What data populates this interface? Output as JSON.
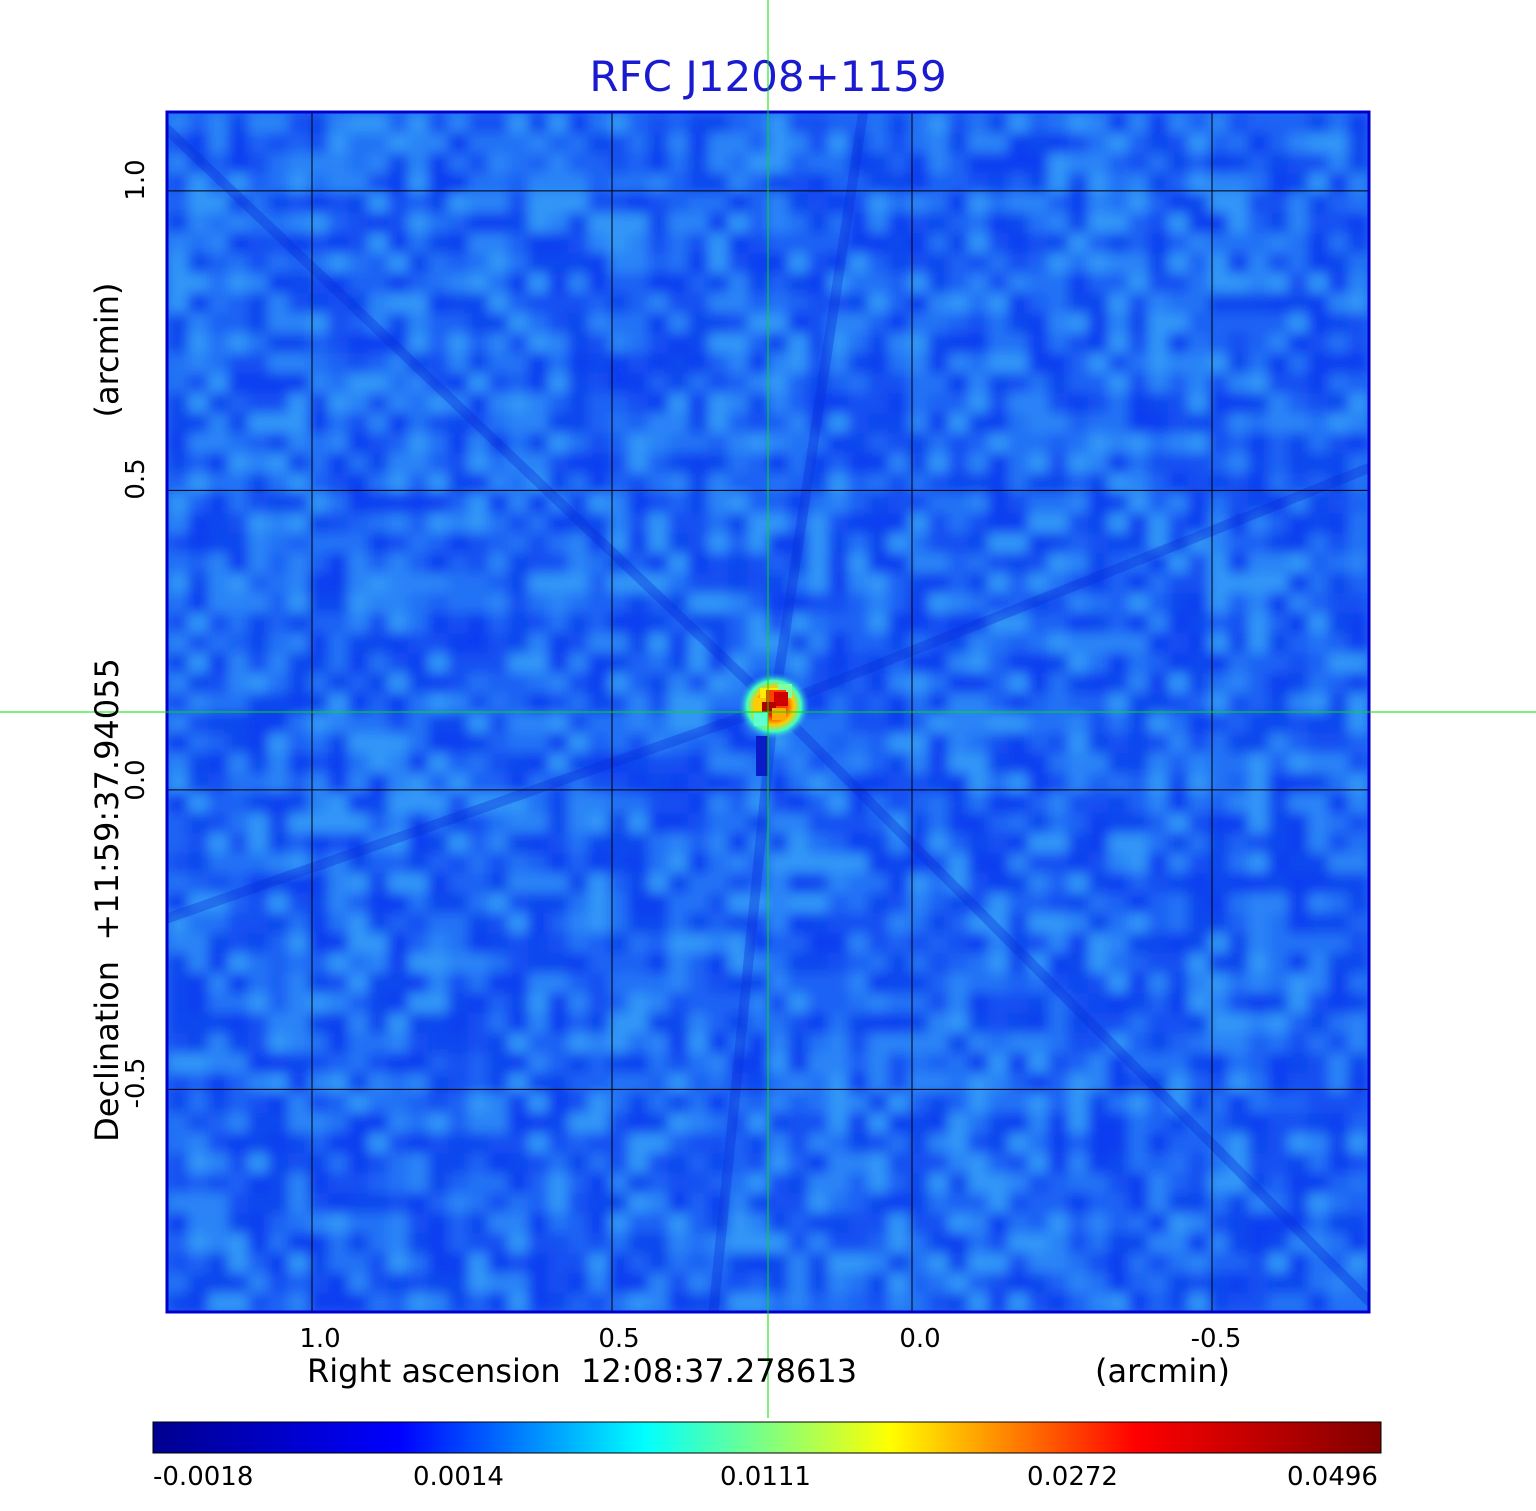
{
  "title": "RFC J1208+1159",
  "xaxis": {
    "label": "Right ascension  12:08:37.278613",
    "unit": "(arcmin)",
    "ticks": [
      "1.0",
      "0.5",
      "0.0",
      "-0.5"
    ],
    "tick_values": [
      1.0,
      0.5,
      0.0,
      -0.5
    ],
    "range": [
      1.24,
      -0.76
    ]
  },
  "yaxis": {
    "label": "Declination  +11:59:37.94055",
    "unit": "(arcmin)",
    "ticks": [
      "1.0",
      "0.5",
      "0.0",
      "-0.5"
    ],
    "tick_values": [
      1.0,
      0.5,
      0.0,
      -0.5
    ],
    "range": [
      -0.87,
      1.13
    ]
  },
  "colorbar": {
    "ticks": [
      "-0.0018",
      "0.0014",
      "0.0111",
      "0.0272",
      "0.0496"
    ],
    "colormap": "jet",
    "colors": [
      "#00008f",
      "#0000ff",
      "#00ffff",
      "#ffff00",
      "#ff0000",
      "#800000"
    ]
  },
  "colors": {
    "title": "#1a1ad0",
    "frame": "#0000cc",
    "crosshair": "#00e000",
    "grid": "#000000"
  },
  "chart_data": {
    "type": "heatmap",
    "title": "RFC J1208+1159",
    "xlabel": "Right ascension  12:08:37.278613",
    "ylabel": "Declination  +11:59:37.94055",
    "x_unit": "arcmin",
    "y_unit": "arcmin",
    "xlim": [
      1.24,
      -0.76
    ],
    "ylim": [
      -0.87,
      1.13
    ],
    "grid": true,
    "colormap": "jet",
    "colorbar_ticks": [
      -0.0018,
      0.0014,
      0.0111,
      0.0272,
      0.0496
    ],
    "crosshair": {
      "x": 0.24,
      "y": 0.13
    },
    "source_peak": {
      "x": 0.23,
      "y": 0.14,
      "value": 0.0496
    }
  }
}
